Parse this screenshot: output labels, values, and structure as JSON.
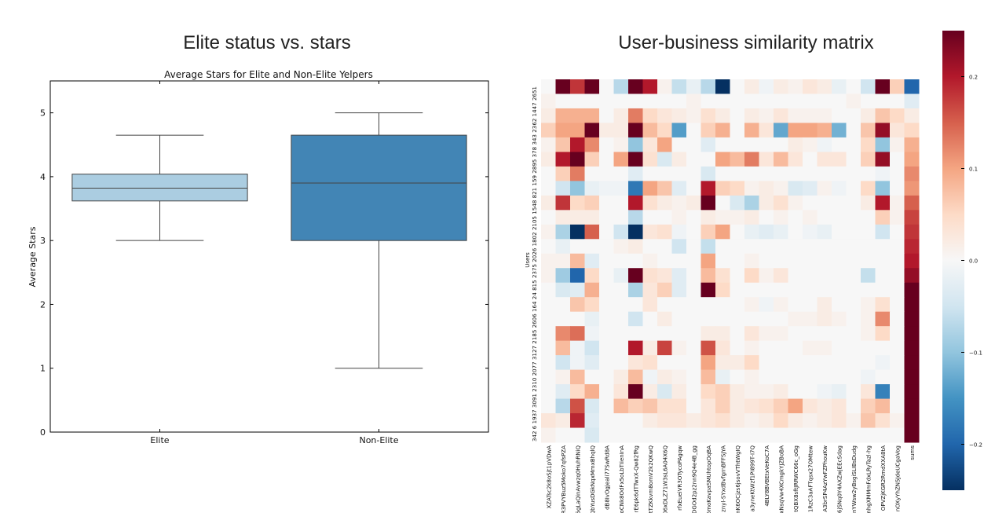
{
  "left_panel": {
    "title": "Elite status vs. stars"
  },
  "right_panel": {
    "title": "User-business similarity matrix"
  },
  "colors": {
    "elite_box": "#abcde1",
    "non_elite_box": "#4285b5",
    "diverging_low": "#053061",
    "diverging_mid": "#f7f7f7",
    "diverging_high": "#67001f"
  },
  "chart_data": [
    {
      "type": "box",
      "title": "Average Stars for Elite and Non-Elite Yelpers",
      "xlabel": "",
      "ylabel": "Average Stars",
      "categories": [
        "Elite",
        "Non-Elite"
      ],
      "boxes": [
        {
          "name": "Elite",
          "whisker_low": 3.0,
          "q1": 3.62,
          "median": 3.82,
          "q3": 4.04,
          "whisker_high": 4.65
        },
        {
          "name": "Non-Elite",
          "whisker_low": 1.0,
          "q1": 3.0,
          "median": 3.9,
          "q3": 4.65,
          "whisker_high": 5.0
        }
      ],
      "ylim": [
        0,
        5.5
      ],
      "yticks": [
        0,
        1,
        2,
        3,
        4,
        5
      ],
      "grid": false
    },
    {
      "type": "heatmap",
      "title": "",
      "ylabel": "Users",
      "xlabel": "",
      "row_labels": [
        "2651",
        "1447",
        "2362",
        "343",
        "378",
        "2895",
        "159",
        "821",
        "1548",
        "2105",
        "1802",
        "2026",
        "2375",
        "815",
        "24",
        "164",
        "2606",
        "2185",
        "3127",
        "2077",
        "2310",
        "3091",
        "1937",
        "6",
        "342"
      ],
      "row_label_text": "342 6 1937 3091 2310 2077 3127 2185 2606 164 24 815 2375 2026 1802 2105 1548 821 159 2895 378 343 2362 1447 2651",
      "col_labels": [
        "XZATsc2k8oSjt1pVDwA",
        "R3PVYBuz5Moko7qfsPZA",
        "5gLaQinAvwzq0HuhRNiQ",
        "QbYusDGkNqxMmxBhqlQ",
        "dB8IvOgjeali77SwRd8A",
        "oCNk8OdFx5oLbTIienInA",
        "rE6pk6dTTwxX-Qw82fRg",
        "rtTZKkvm8omV2k2QKwQ",
        "06xDLZ71W3sL6A04X6Q",
        "rfxEueiVR3OTycoPAgqw",
        "IDGOd2pz2nn9Q4e4B_gg",
        "2s6moKavpaSMUhtopOqBA",
        "znyl-SYxdBvfgrnBFFSJYA",
        "nK6OCjzs6jsovVThtWgIQ",
        "a3yneKtWzf1PI899T-I7Q",
        "4BLY8BVBEtxVeKoC7A",
        "xNsqVw4XCmgkYJZBoBA",
        "tQBX8sftJRRWC66c_oGg",
        "1RzC3aAFTqsx27OMtew",
        "A3brSP4AzYwFZPhouKw",
        "6jSNq0Y4AXZwjEEcSdag",
        "nYWsw2yBsgiSLIBsDudg",
        "xnhgXMMmFdxLRyTazl-hg",
        "OPVZjKGR2RmdXXA8tA",
        "nOXyYhZN5JdeUCgaVog",
        "sums"
      ],
      "colorbar_ticks": [
        -0.2,
        -0.1,
        0.0,
        0.1,
        0.2
      ],
      "colorbar_tick_labels": [
        "−0.2",
        "−0.1",
        "0.0",
        "0.1",
        "0.2"
      ],
      "vmin": -0.25,
      "vmax": 0.25,
      "colormap": "RdBu_r",
      "values": [
        [
          0,
          0.25,
          0.18,
          0.25,
          0,
          -0.07,
          0.25,
          0.2,
          0.01,
          -0.06,
          -0.02,
          -0.07,
          -0.25,
          0,
          0.02,
          -0.01,
          0.02,
          0.01,
          0.03,
          0.02,
          -0.02,
          0,
          -0.05,
          0.25,
          0.06,
          -0.2
        ],
        [
          0.01,
          0,
          0,
          0,
          0,
          0,
          0,
          0,
          0,
          0,
          0.01,
          0,
          0,
          0,
          0,
          0,
          0,
          0,
          0,
          0,
          0,
          0.01,
          0,
          0,
          0,
          -0.03
        ],
        [
          0.02,
          0.09,
          0.09,
          0.09,
          0,
          0.02,
          0.13,
          0.05,
          0.03,
          0.02,
          0.01,
          0.04,
          0.02,
          0,
          0.02,
          0.01,
          0.03,
          0.01,
          0.01,
          0.01,
          0,
          0,
          0.02,
          0.07,
          0.05,
          0.02
        ],
        [
          0.06,
          0.1,
          0.1,
          0.25,
          0.02,
          0.02,
          0.25,
          0.08,
          0.05,
          -0.14,
          0,
          0.06,
          0.09,
          0,
          0.09,
          0.03,
          -0.13,
          0.1,
          0.1,
          0.09,
          -0.12,
          0,
          0.07,
          0.22,
          0.03,
          0.05
        ],
        [
          0.01,
          0.07,
          0.2,
          0.12,
          0,
          0.01,
          -0.1,
          0.03,
          0.1,
          0,
          0,
          -0.03,
          0,
          0,
          0,
          0,
          0,
          0.02,
          0.01,
          -0.01,
          0,
          0,
          0.05,
          -0.1,
          0.01,
          0.09
        ],
        [
          0.02,
          0.2,
          0.25,
          0.06,
          0,
          0.1,
          0.25,
          0.04,
          -0.04,
          0.02,
          0,
          0,
          0.1,
          0.08,
          0.13,
          0.03,
          0.08,
          0.03,
          0,
          0.03,
          0.03,
          0,
          0.06,
          0.22,
          0,
          0.1
        ],
        [
          0,
          0.06,
          0.13,
          0,
          0,
          0,
          -0.03,
          0,
          0,
          0,
          0,
          -0.04,
          0,
          0,
          0,
          0,
          0,
          0,
          0,
          0,
          0,
          0,
          0,
          -0.01,
          0,
          0.12
        ],
        [
          0,
          -0.05,
          -0.1,
          -0.02,
          -0.01,
          -0.01,
          -0.18,
          0.1,
          0.07,
          -0.03,
          0,
          0.2,
          0.06,
          0.05,
          0.01,
          0.02,
          0.01,
          -0.04,
          -0.03,
          0.01,
          -0.01,
          0,
          0.05,
          -0.1,
          0,
          0.11
        ],
        [
          0.02,
          0.18,
          0.05,
          0.06,
          0,
          0,
          0.2,
          0.04,
          0.02,
          0.01,
          0.02,
          0.25,
          0,
          -0.04,
          -0.08,
          0.02,
          0.04,
          0.01,
          0,
          0,
          0,
          0,
          0.02,
          0.2,
          0.01,
          0.15
        ],
        [
          0,
          0.02,
          0.02,
          0.02,
          0,
          0,
          -0.07,
          0,
          0,
          0.01,
          0,
          0.02,
          0.01,
          0.01,
          0.02,
          0,
          0.01,
          0,
          0.01,
          0,
          0,
          0,
          0,
          0.06,
          0.01,
          0.17
        ],
        [
          0.01,
          -0.08,
          -0.25,
          0.15,
          0,
          -0.05,
          -0.25,
          0.03,
          0.04,
          -0.01,
          0,
          0.06,
          0.1,
          0,
          -0.02,
          -0.03,
          -0.02,
          0,
          -0.01,
          -0.02,
          0,
          0,
          0,
          -0.05,
          0,
          0.18
        ],
        [
          0,
          -0.02,
          0,
          0,
          0,
          0.01,
          0.02,
          0,
          0,
          -0.05,
          0,
          -0.06,
          0,
          0,
          0,
          0,
          0,
          0,
          0,
          0,
          0,
          0,
          0,
          0,
          0,
          0.19
        ],
        [
          0.01,
          0.01,
          0.08,
          -0.03,
          0,
          0,
          0,
          0.01,
          0,
          0,
          0,
          0.1,
          0,
          0,
          0.01,
          0,
          0,
          0,
          0,
          0,
          0,
          0,
          0,
          0,
          0,
          0.2
        ],
        [
          0.01,
          -0.09,
          -0.2,
          0.05,
          0,
          -0.02,
          0.25,
          0.04,
          0.03,
          -0.03,
          0,
          0.08,
          0.04,
          0,
          0.05,
          0.01,
          0.03,
          0,
          0,
          0,
          0,
          0,
          -0.06,
          0,
          0,
          0.22
        ],
        [
          0,
          -0.04,
          -0.03,
          0.09,
          0,
          0,
          -0.08,
          0.03,
          0.06,
          -0.03,
          0,
          0.25,
          0.05,
          0,
          0,
          0,
          0,
          0,
          0,
          0,
          0,
          0,
          0,
          0,
          0,
          0.25
        ],
        [
          0,
          0,
          0.07,
          0.05,
          0,
          0,
          0,
          0.03,
          0,
          0,
          0,
          0,
          0,
          0,
          0.01,
          -0.01,
          0.01,
          0,
          0,
          0.02,
          0,
          0,
          0.01,
          0.04,
          0,
          0.25
        ],
        [
          0,
          0,
          0,
          -0.02,
          0,
          0,
          -0.05,
          0,
          0.02,
          0,
          0,
          0,
          0,
          0,
          0,
          0,
          0,
          0.01,
          0.01,
          0.02,
          0.01,
          0,
          0.01,
          0.12,
          0,
          0.25
        ],
        [
          0,
          0.12,
          0.14,
          -0.01,
          0,
          0,
          0,
          0,
          0,
          0,
          0,
          0.02,
          0.02,
          0,
          0.03,
          0.01,
          0.01,
          0,
          0,
          0,
          0,
          0,
          0.01,
          0.05,
          0,
          0.25
        ],
        [
          0,
          0.08,
          -0.01,
          -0.05,
          0,
          0,
          0.2,
          0.02,
          0.17,
          0.01,
          0,
          0.16,
          0.03,
          0,
          0.01,
          0,
          0,
          0,
          0.01,
          0.01,
          0,
          0,
          0,
          0,
          0,
          0.25
        ],
        [
          0,
          -0.05,
          -0.01,
          -0.03,
          0,
          0,
          0.03,
          0.04,
          0,
          0,
          0,
          0.1,
          0.02,
          0.02,
          0.05,
          0,
          0,
          0,
          0,
          0,
          0,
          0,
          0,
          -0.01,
          0,
          0.25
        ],
        [
          0,
          0.01,
          0.08,
          0,
          0,
          0.02,
          0.08,
          -0.01,
          0.02,
          0.01,
          0,
          0.08,
          -0.02,
          0,
          0.01,
          0,
          0,
          0,
          0,
          0,
          0,
          0,
          -0.01,
          0,
          0,
          0.25
        ],
        [
          0,
          -0.03,
          0.05,
          0.09,
          0,
          0.03,
          0.25,
          0.02,
          -0.04,
          0.02,
          0,
          0.05,
          0.06,
          0.02,
          0.01,
          0.01,
          0.02,
          0,
          0,
          -0.01,
          -0.02,
          0,
          0.03,
          -0.17,
          0,
          0.25
        ],
        [
          0,
          -0.07,
          0.16,
          -0.04,
          0,
          0.08,
          0.06,
          0.07,
          0.04,
          0.04,
          0,
          0.03,
          0.06,
          0.02,
          0.03,
          0.04,
          0.06,
          0.1,
          0.03,
          0.02,
          0.03,
          0,
          0.06,
          0.08,
          0,
          0.25
        ],
        [
          0.03,
          0.02,
          0.19,
          -0.03,
          0,
          0,
          0,
          0.02,
          0.03,
          0.03,
          0.02,
          0.03,
          0.04,
          0.02,
          0.01,
          0.02,
          0.05,
          0.02,
          0.01,
          0.02,
          0.03,
          0.01,
          0.07,
          0.04,
          0.01,
          0.25
        ],
        [
          0.01,
          0,
          0,
          -0.04,
          0,
          0,
          0,
          0,
          0,
          0,
          0,
          0,
          0,
          0,
          0,
          0,
          0,
          0,
          0,
          0,
          0,
          0,
          0,
          0,
          0,
          0.25
        ]
      ]
    }
  ]
}
